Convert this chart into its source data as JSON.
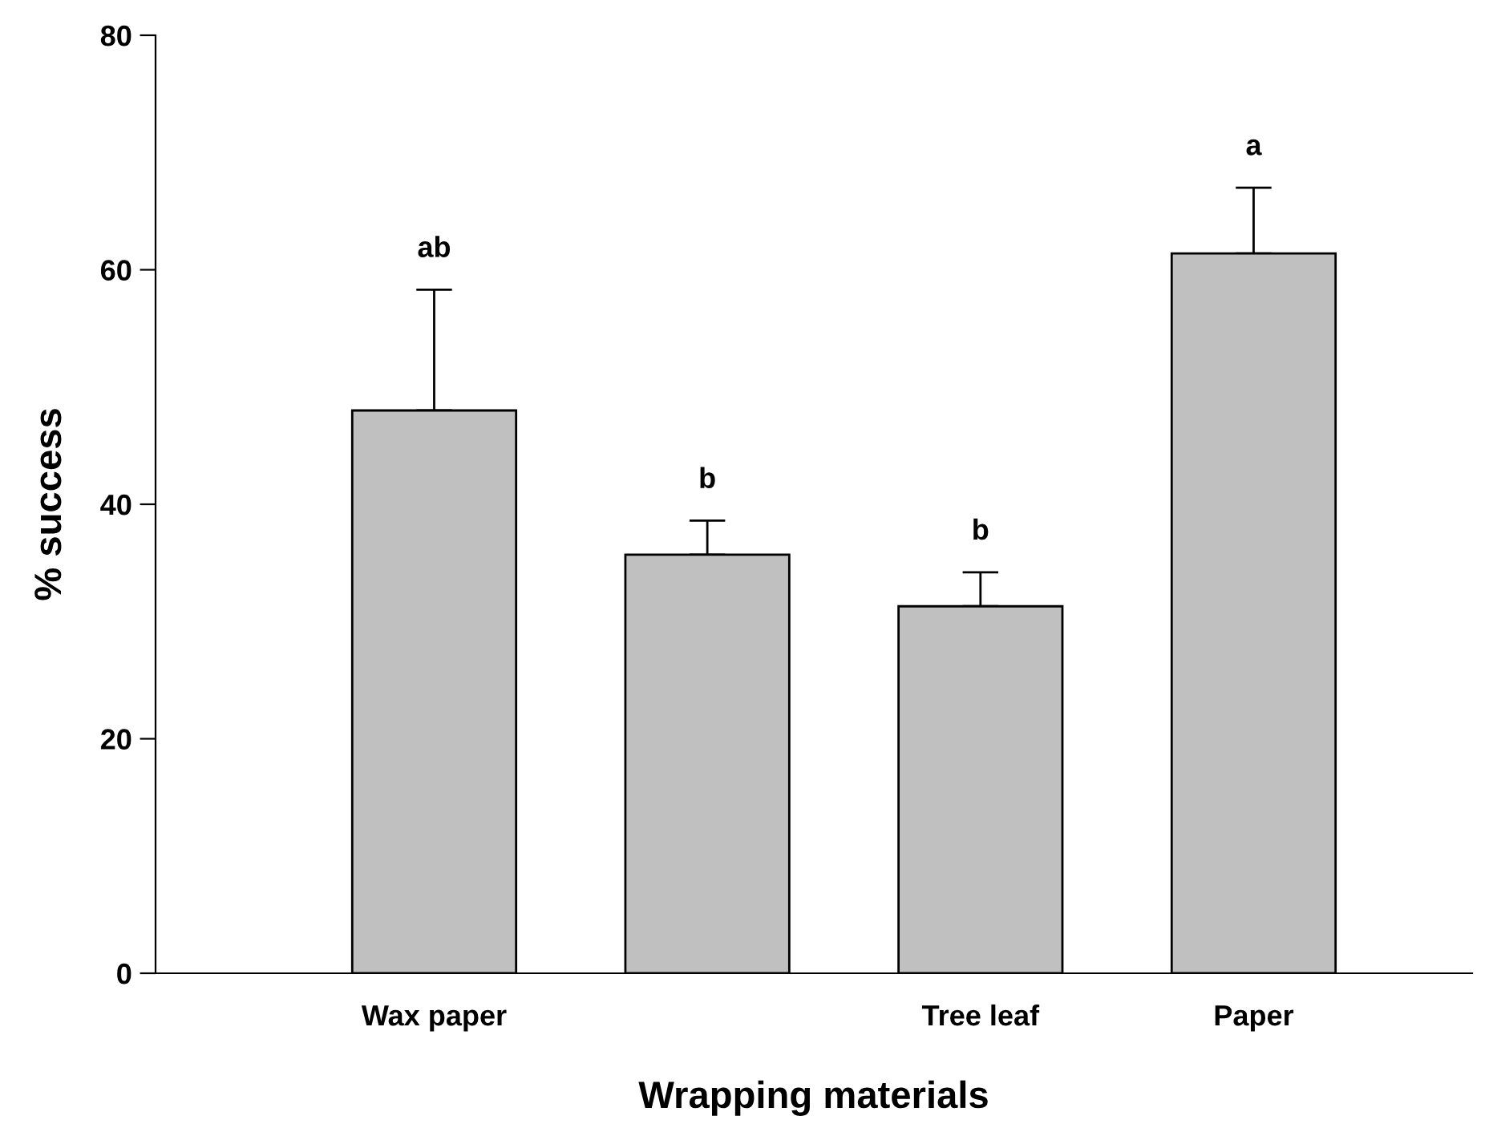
{
  "chart_data": {
    "type": "bar",
    "xlabel": "Wrapping materials",
    "ylabel": "% success",
    "categories": [
      "Wax paper",
      null,
      "Tree leaf",
      "Paper"
    ],
    "values": [
      48.0,
      35.7,
      31.3,
      61.4
    ],
    "errors": [
      [
        48.0,
        58.3
      ],
      [
        35.7,
        38.6
      ],
      [
        31.3,
        34.2
      ],
      [
        61.4,
        67.0
      ]
    ],
    "color": "#c0c0c0",
    "ylim": [
      0,
      80
    ],
    "yticks": [
      0,
      20,
      40,
      60,
      80
    ],
    "grid": false,
    "legend": false,
    "annotations": [
      "ab",
      "b",
      "b",
      "a"
    ]
  }
}
